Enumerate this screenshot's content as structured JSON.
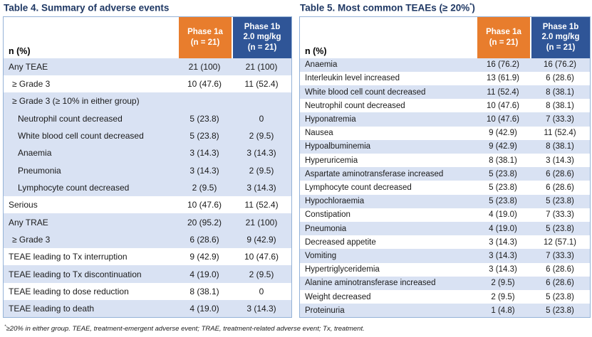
{
  "colors": {
    "orange": "#E87D2D",
    "blue": "#2F5597",
    "row_shaded": "#D9E2F3",
    "row_plain": "#FFFFFF",
    "border": "#95B3D7",
    "title_navy": "#1F3864"
  },
  "footnote": {
    "marker": "*",
    "text": "≥20% in either group. TEAE, treatment-emergent adverse event; TRAE, treatment-related adverse event; Tx, treatment."
  },
  "table4": {
    "title_prefix": "Table 4. Summary of adverse events",
    "title_sup": "",
    "title_suffix": "",
    "label_header": "n (%)",
    "columns": [
      {
        "lines": [
          "Phase 1a",
          "(n = 21)"
        ],
        "bg": "orange"
      },
      {
        "lines": [
          "Phase 1b",
          "2.0 mg/kg",
          "(n = 21)"
        ],
        "bg": "blue"
      }
    ],
    "rows": [
      {
        "label": "Any TEAE",
        "v1": "21 (100)",
        "v2": "21 (100)",
        "indent": 0,
        "shaded": true
      },
      {
        "label": "≥ Grade 3",
        "v1": "10 (47.6)",
        "v2": "11 (52.4)",
        "indent": 1,
        "shaded": false
      },
      {
        "label": "≥ Grade 3 (≥ 10% in either group)",
        "v1": "",
        "v2": "",
        "indent": 1,
        "shaded": true
      },
      {
        "label": "Neutrophil count decreased",
        "v1": "5 (23.8)",
        "v2": "0",
        "indent": 2,
        "shaded": true
      },
      {
        "label": "White blood cell count decreased",
        "v1": "5 (23.8)",
        "v2": "2 (9.5)",
        "indent": 2,
        "shaded": true
      },
      {
        "label": "Anaemia",
        "v1": "3 (14.3)",
        "v2": "3 (14.3)",
        "indent": 2,
        "shaded": true
      },
      {
        "label": "Pneumonia",
        "v1": "3 (14.3)",
        "v2": "2 (9.5)",
        "indent": 2,
        "shaded": true
      },
      {
        "label": "Lymphocyte count decreased",
        "v1": "2 (9.5)",
        "v2": "3 (14.3)",
        "indent": 2,
        "shaded": true
      },
      {
        "label": "Serious",
        "v1": "10 (47.6)",
        "v2": "11 (52.4)",
        "indent": 0,
        "shaded": false
      },
      {
        "label": "Any TRAE",
        "v1": "20 (95.2)",
        "v2": "21 (100)",
        "indent": 0,
        "shaded": true
      },
      {
        "label": "≥ Grade 3",
        "v1": "6 (28.6)",
        "v2": "9 (42.9)",
        "indent": 1,
        "shaded": true
      },
      {
        "label": "TEAE leading to Tx interruption",
        "v1": "9 (42.9)",
        "v2": "10 (47.6)",
        "indent": 0,
        "shaded": false
      },
      {
        "label": "TEAE leading to Tx discontinuation",
        "v1": "4 (19.0)",
        "v2": "2 (9.5)",
        "indent": 0,
        "shaded": true
      },
      {
        "label": "TEAE leading to dose reduction",
        "v1": "8 (38.1)",
        "v2": "0",
        "indent": 0,
        "shaded": false
      },
      {
        "label": "TEAE leading to death",
        "v1": "4 (19.0)",
        "v2": "3 (14.3)",
        "indent": 0,
        "shaded": true
      }
    ]
  },
  "table5": {
    "title_prefix": "Table 5. Most common TEAEs (≥ 20%",
    "title_sup": "*",
    "title_suffix": ")",
    "label_header": "n (%)",
    "columns": [
      {
        "lines": [
          "Phase 1a",
          "(n = 21)"
        ],
        "bg": "orange"
      },
      {
        "lines": [
          "Phase 1b",
          "2.0 mg/kg",
          "(n = 21)"
        ],
        "bg": "blue"
      }
    ],
    "rows": [
      {
        "label": "Anaemia",
        "v1": "16 (76.2)",
        "v2": "16 (76.2)",
        "indent": 0,
        "shaded": true
      },
      {
        "label": "Interleukin level increased",
        "v1": "13 (61.9)",
        "v2": "6 (28.6)",
        "indent": 0,
        "shaded": false
      },
      {
        "label": "White blood cell count decreased",
        "v1": "11 (52.4)",
        "v2": "8 (38.1)",
        "indent": 0,
        "shaded": true
      },
      {
        "label": "Neutrophil count decreased",
        "v1": "10 (47.6)",
        "v2": "8 (38.1)",
        "indent": 0,
        "shaded": false
      },
      {
        "label": "Hyponatremia",
        "v1": "10 (47.6)",
        "v2": "7 (33.3)",
        "indent": 0,
        "shaded": true
      },
      {
        "label": "Nausea",
        "v1": "9 (42.9)",
        "v2": "11 (52.4)",
        "indent": 0,
        "shaded": false
      },
      {
        "label": "Hypoalbuminemia",
        "v1": "9 (42.9)",
        "v2": "8 (38.1)",
        "indent": 0,
        "shaded": true
      },
      {
        "label": "Hyperuricemia",
        "v1": "8 (38.1)",
        "v2": "3 (14.3)",
        "indent": 0,
        "shaded": false
      },
      {
        "label": "Aspartate aminotransferase increased",
        "v1": "5 (23.8)",
        "v2": "6 (28.6)",
        "indent": 0,
        "shaded": true
      },
      {
        "label": "Lymphocyte count decreased",
        "v1": "5 (23.8)",
        "v2": "6 (28.6)",
        "indent": 0,
        "shaded": false
      },
      {
        "label": "Hypochloraemia",
        "v1": "5 (23.8)",
        "v2": "5 (23.8)",
        "indent": 0,
        "shaded": true
      },
      {
        "label": "Constipation",
        "v1": "4 (19.0)",
        "v2": "7 (33.3)",
        "indent": 0,
        "shaded": false
      },
      {
        "label": "Pneumonia",
        "v1": "4 (19.0)",
        "v2": "5 (23.8)",
        "indent": 0,
        "shaded": true
      },
      {
        "label": "Decreased appetite",
        "v1": "3 (14.3)",
        "v2": "12 (57.1)",
        "indent": 0,
        "shaded": false
      },
      {
        "label": "Vomiting",
        "v1": "3 (14.3)",
        "v2": "7 (33.3)",
        "indent": 0,
        "shaded": true
      },
      {
        "label": "Hypertriglyceridemia",
        "v1": "3 (14.3)",
        "v2": "6 (28.6)",
        "indent": 0,
        "shaded": false
      },
      {
        "label": "Alanine aminotransferase increased",
        "v1": "2 (9.5)",
        "v2": "6 (28.6)",
        "indent": 0,
        "shaded": true
      },
      {
        "label": "Weight decreased",
        "v1": "2 (9.5)",
        "v2": "5 (23.8)",
        "indent": 0,
        "shaded": false
      },
      {
        "label": "Proteinuria",
        "v1": "1 (4.8)",
        "v2": "5 (23.8)",
        "indent": 0,
        "shaded": true
      }
    ]
  }
}
